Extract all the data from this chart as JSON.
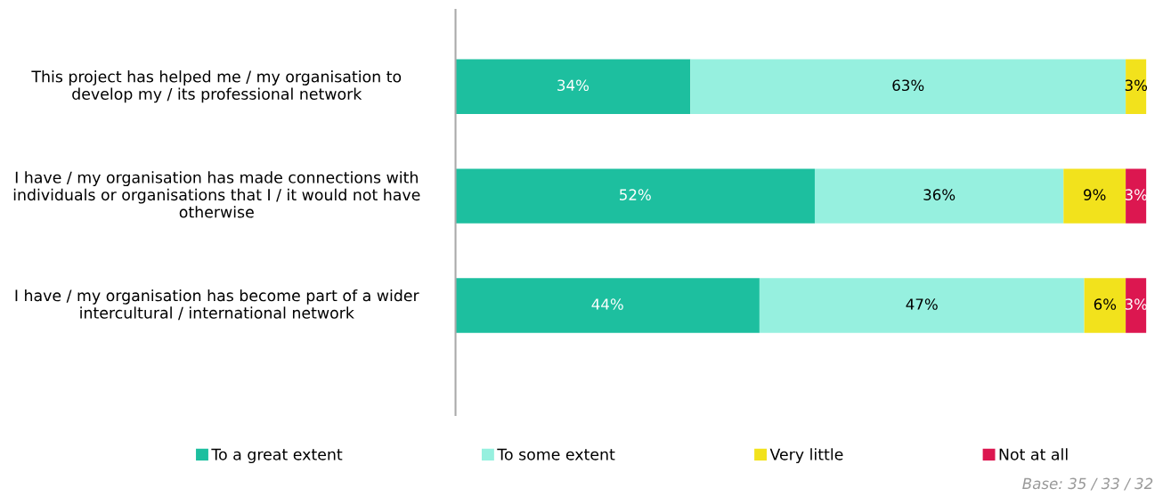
{
  "chart_data": {
    "type": "bar",
    "orientation": "horizontal",
    "stacked": true,
    "categories": [
      "This project has helped me / my organisation to develop my / its professional network",
      "I have / my organisation has made connections with individuals or organisations that I / it would not have otherwise",
      "I have / my organisation has become part of a wider intercultural / international network"
    ],
    "series": [
      {
        "name": "To a great extent",
        "color": "#1dbf9f",
        "values": [
          34,
          52,
          44
        ],
        "value_labels": [
          "34%",
          "52%",
          "44%"
        ]
      },
      {
        "name": "To some extent",
        "color": "#96f0df",
        "values": [
          63,
          36,
          47
        ],
        "value_labels": [
          "63%",
          "36%",
          "47%"
        ]
      },
      {
        "name": "Very little",
        "color": "#f2e21c",
        "values": [
          3,
          9,
          6
        ],
        "value_labels": [
          "3%",
          "9%",
          "6%"
        ]
      },
      {
        "name": "Not at all",
        "color": "#dc1750",
        "values": [
          null,
          3,
          3
        ],
        "value_labels": [
          null,
          "3%",
          "3%"
        ]
      }
    ],
    "legend": "bottom",
    "grid": false,
    "annotations": [
      "Base: 35 / 33 / 32"
    ]
  }
}
